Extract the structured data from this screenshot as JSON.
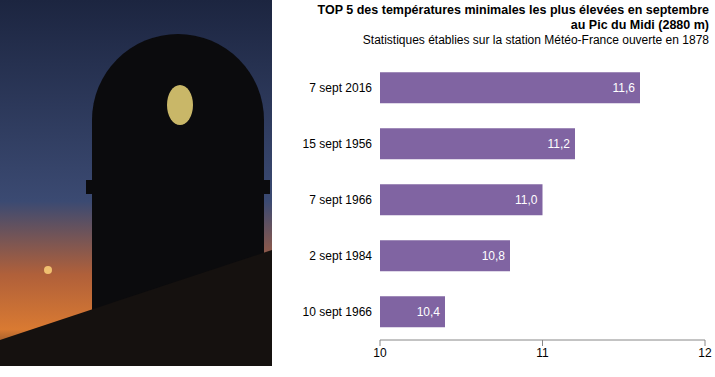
{
  "chart_data": {
    "type": "bar",
    "orientation": "horizontal",
    "title": "TOP 5 des températures minimales les plus élevées en septembre\nau Pic du Midi (2880 m)",
    "subtitle": "Statistiques établies sur la station Météo-France ouverte en 1878",
    "categories": [
      "7 sept 2016",
      "15 sept 1956",
      "7 sept 1966",
      "2 sept 1984",
      "10 sept 1966"
    ],
    "values": [
      11.6,
      11.2,
      11.0,
      10.8,
      10.4
    ],
    "value_labels": [
      "11,6",
      "11,2",
      "11,0",
      "10,8",
      "10,4"
    ],
    "color": "#8064a2",
    "xlim": [
      10,
      12
    ],
    "xticks": [
      10,
      11,
      12
    ],
    "grid": false,
    "data_labels": true
  }
}
